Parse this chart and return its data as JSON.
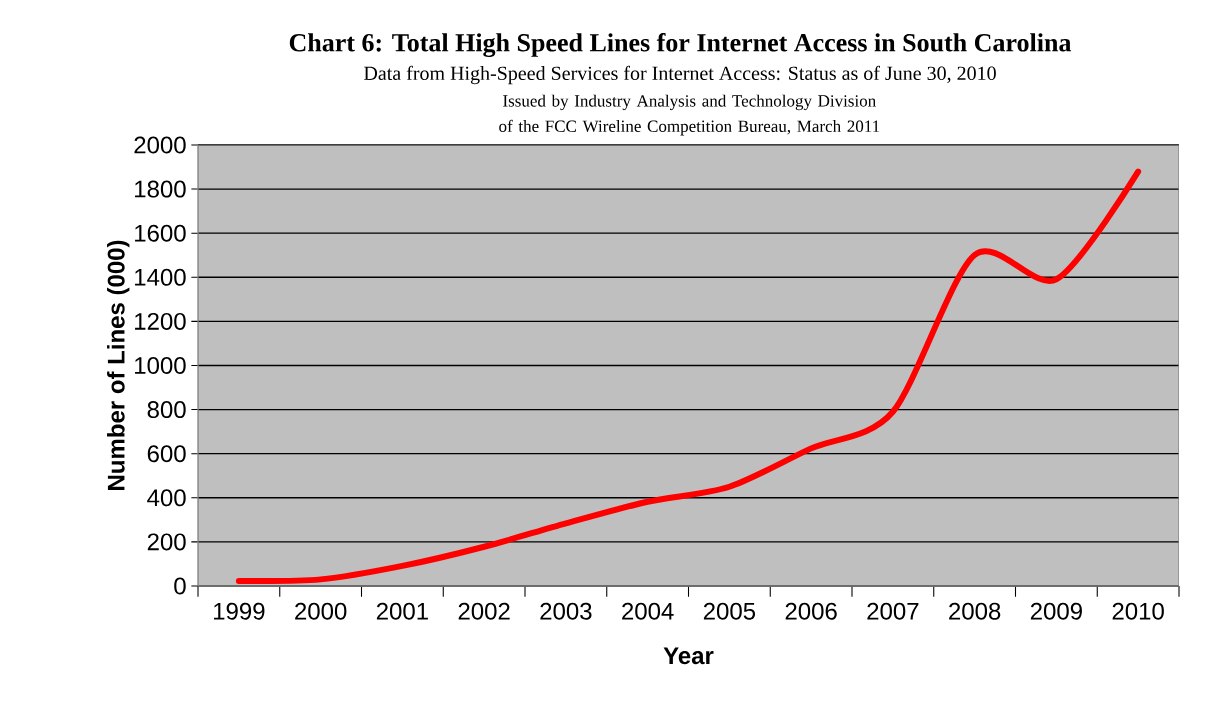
{
  "chart_data": {
    "type": "line",
    "title": "Chart 6:  Total High Speed Lines for Internet Access in South Carolina",
    "subtitle": "Data from High-Speed Services for Internet Access: Status as of June 30, 2010",
    "annotations": [
      "Issued by Industry Analysis and Technology Division of the FCC Wireline Competition Bureau, March 2011"
    ],
    "xlabel": "Year",
    "ylabel": "Number of Lines (000)",
    "categories": [
      "1999",
      "2000",
      "2001",
      "2002",
      "2003",
      "2004",
      "2005",
      "2006",
      "2007",
      "2008",
      "2009",
      "2010"
    ],
    "series": [
      {
        "color": "#ff0000",
        "values": [
          23,
          30,
          91,
          178,
          284,
          382,
          450,
          624,
          790,
          1501,
          1391,
          1879
        ]
      }
    ],
    "ylim": [
      0,
      2000
    ],
    "yticks": [
      0,
      200,
      400,
      600,
      800,
      1000,
      1200,
      1400,
      1600,
      1800,
      2000
    ],
    "grid": "y"
  }
}
